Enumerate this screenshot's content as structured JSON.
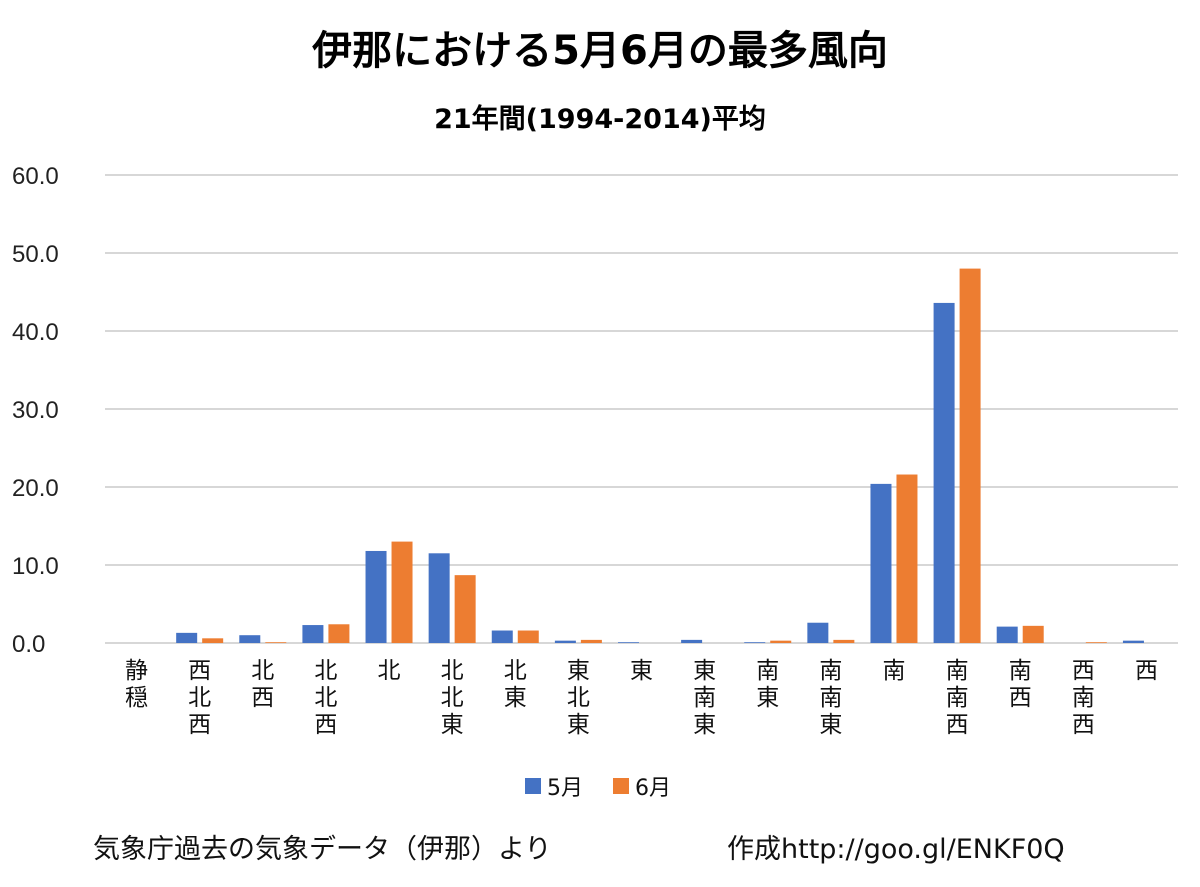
{
  "chart_data": {
    "type": "bar",
    "title": "伊那における5月6月の最多風向",
    "subtitle": "21年間(1994-2014)平均",
    "categories": [
      "静穏",
      "西北西",
      "北西",
      "北北西",
      "北",
      "北北東",
      "北東",
      "東北東",
      "東",
      "東南東",
      "南東",
      "南南東",
      "南",
      "南南西",
      "南西",
      "西南西",
      "西"
    ],
    "series": [
      {
        "name": "5月",
        "color": "#4472C4",
        "values": [
          0,
          1.3,
          1.0,
          2.3,
          11.8,
          11.5,
          1.6,
          0.3,
          0.1,
          0.4,
          0.1,
          2.6,
          20.4,
          43.6,
          2.1,
          0,
          0.3
        ]
      },
      {
        "name": "6月",
        "color": "#ED7D31",
        "values": [
          0,
          0.6,
          0.1,
          2.4,
          13.0,
          8.7,
          1.6,
          0.4,
          0,
          0,
          0.3,
          0.4,
          21.6,
          48.0,
          2.2,
          0.1,
          0
        ]
      }
    ],
    "ylim": [
      0,
      60
    ],
    "yticks": [
      "0.0",
      "10.0",
      "20.0",
      "30.0",
      "40.0",
      "50.0",
      "60.0"
    ],
    "grid": true,
    "legend_position": "bottom"
  },
  "footer": {
    "source": "気象庁過去の気象データ（伊那）より",
    "credit": "作成http://goo.gl/ENKF0Q"
  }
}
